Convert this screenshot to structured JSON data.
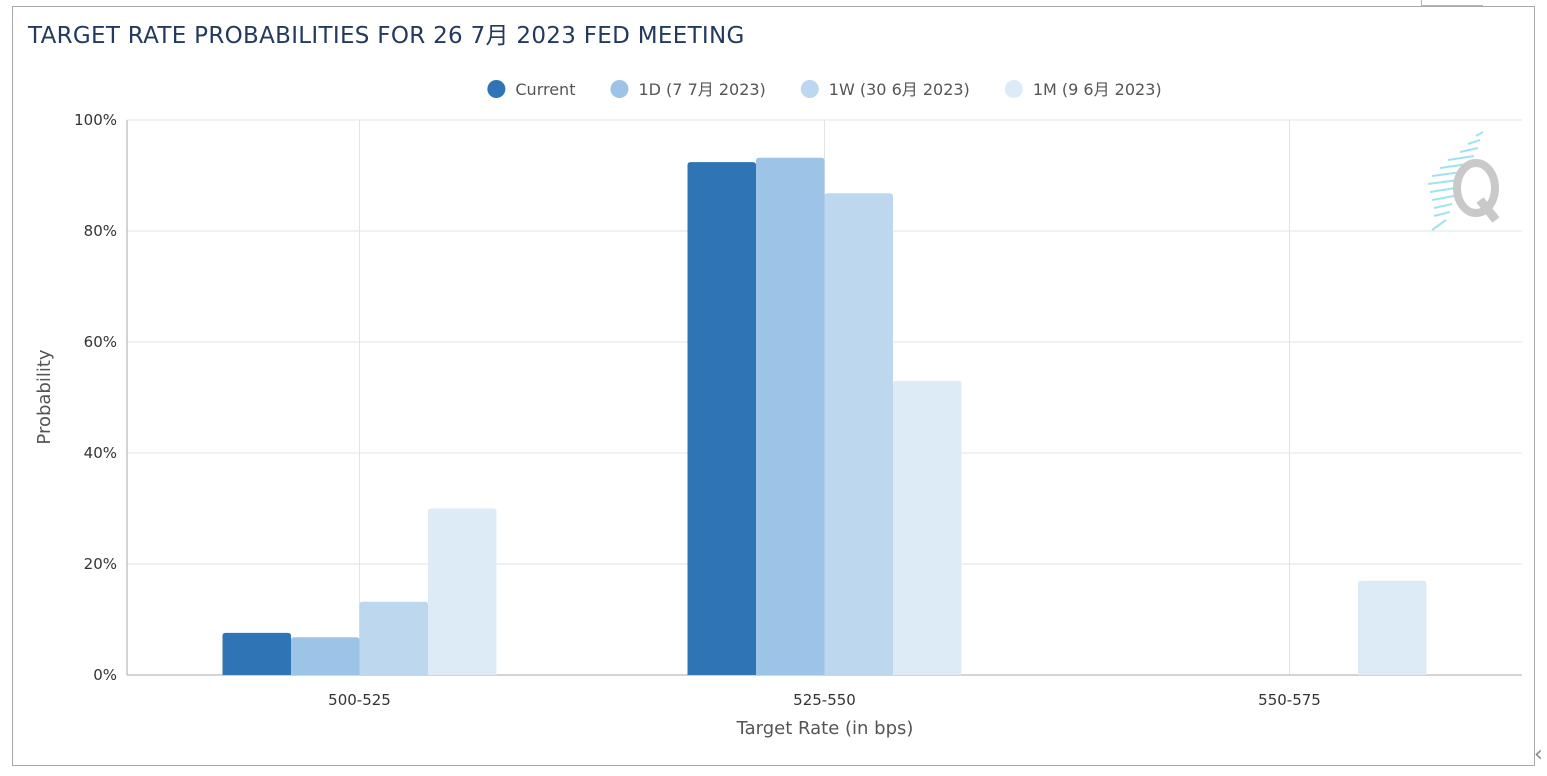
{
  "title": "TARGET RATE PROBABILITIES FOR 26 7月 2023 FED MEETING",
  "colors": {
    "title": "#233a5e",
    "grid": "#e3e3e3",
    "axis": "#a8a8a8"
  },
  "chart_data": {
    "type": "bar",
    "title": "TARGET RATE PROBABILITIES FOR 26 7月 2023 FED MEETING",
    "xlabel": "Target Rate (in bps)",
    "ylabel": "Probability",
    "categories": [
      "500-525",
      "525-550",
      "550-575"
    ],
    "ylim": [
      0,
      100
    ],
    "yticks": [
      "0%",
      "20%",
      "40%",
      "60%",
      "80%",
      "100%"
    ],
    "grid": true,
    "legend_position": "top-center",
    "series": [
      {
        "name": "Current",
        "color": "#2f74b5",
        "values": [
          7.6,
          92.4,
          0
        ]
      },
      {
        "name": "1D (7 7月 2023)",
        "color": "#9dc3e6",
        "values": [
          6.8,
          93.2,
          0
        ]
      },
      {
        "name": "1W (30 6月 2023)",
        "color": "#bdd7ee",
        "values": [
          13.2,
          86.8,
          0
        ]
      },
      {
        "name": "1M (9 6月 2023)",
        "color": "#ddebf7",
        "values": [
          30.0,
          53.0,
          17.0
        ]
      }
    ]
  }
}
